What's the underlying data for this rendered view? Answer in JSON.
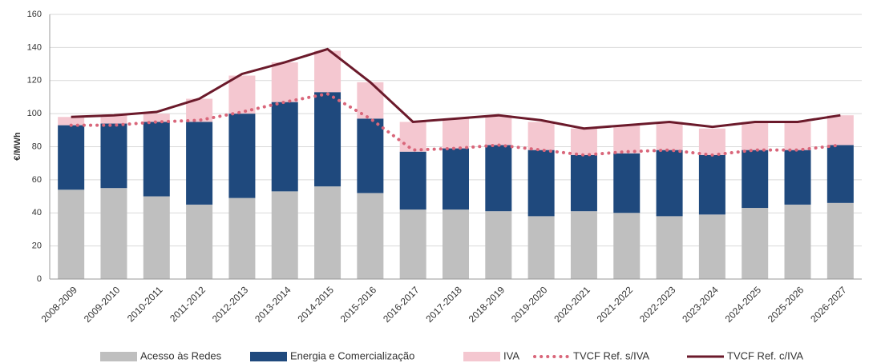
{
  "chart_data": {
    "type": "bar",
    "stacked": true,
    "ylabel": "€/MWh",
    "categories": [
      "2008-2009",
      "2009-2010",
      "2010-2011",
      "2011-2012",
      "2012-2013",
      "2013-2014",
      "2014-2015",
      "2015-2016",
      "2016-2017",
      "2017-2018",
      "2018-2019",
      "2019-2020",
      "2020-2021",
      "2021-2022",
      "2022-2023",
      "2023-2024",
      "2024-2025",
      "2025-2026",
      "2026-2027"
    ],
    "series": [
      {
        "name": "Acesso às Redes",
        "type": "bar",
        "color": "#bfbfbf",
        "values": [
          54,
          55,
          50,
          45,
          49,
          53,
          56,
          52,
          42,
          42,
          41,
          38,
          41,
          40,
          38,
          39,
          43,
          45,
          46
        ]
      },
      {
        "name": "Energia e Comercialização",
        "type": "bar",
        "color": "#1f497d",
        "values": [
          39,
          39,
          45,
          50,
          51,
          54,
          57,
          45,
          35,
          37,
          40,
          40,
          34,
          36,
          40,
          36,
          35,
          33,
          35
        ]
      },
      {
        "name": "IVA",
        "type": "bar",
        "color": "#f4c7d0",
        "values": [
          5,
          5,
          5,
          14,
          23,
          24,
          25,
          22,
          18,
          18,
          18,
          17,
          16,
          17,
          17,
          16,
          17,
          17,
          18
        ]
      },
      {
        "name": "TVCF Ref. s/IVA",
        "type": "line",
        "dash": "dotted",
        "color": "#d9667a",
        "values": [
          93,
          93,
          95,
          96,
          101,
          107,
          112,
          97,
          78,
          79,
          81,
          78,
          75,
          77,
          78,
          75,
          78,
          78,
          81
        ]
      },
      {
        "name": "TVCF Ref. c/IVA",
        "type": "line",
        "dash": "solid",
        "color": "#6b1a2b",
        "values": [
          98,
          99,
          101,
          109,
          124,
          131,
          139,
          119,
          95,
          97,
          99,
          96,
          91,
          93,
          95,
          92,
          95,
          95,
          99
        ]
      }
    ],
    "ylim": [
      0,
      160
    ],
    "yticks": [
      0,
      20,
      40,
      60,
      80,
      100,
      120,
      140,
      160
    ],
    "grid": true,
    "legend": "bottom"
  }
}
